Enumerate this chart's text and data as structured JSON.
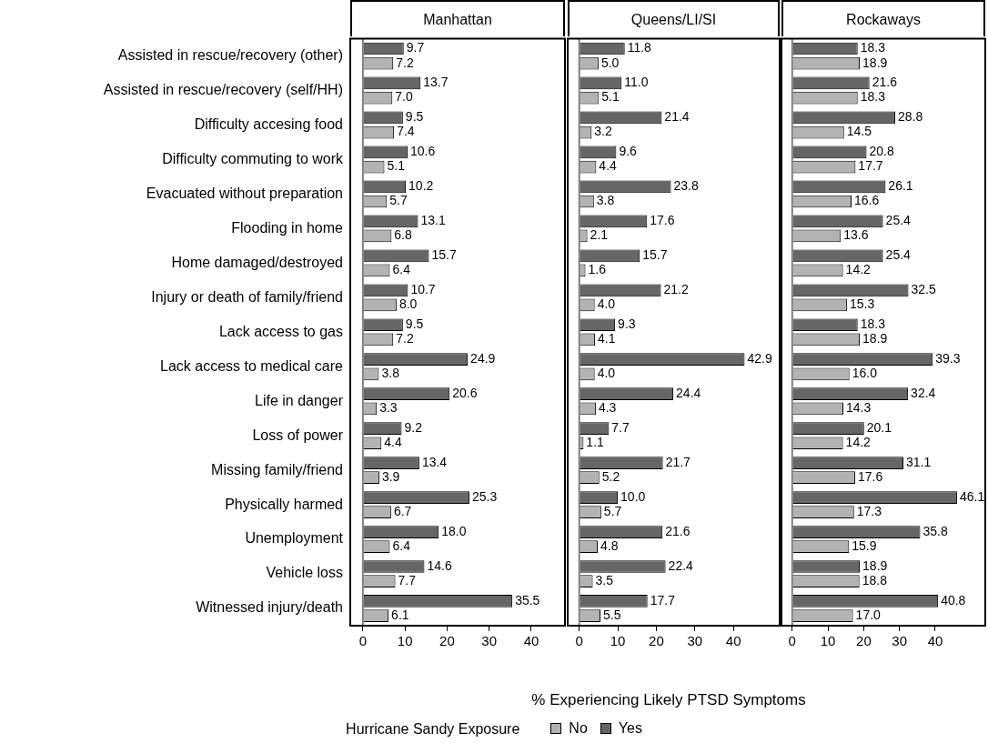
{
  "chart_data": [
    {
      "type": "bar",
      "orientation": "horizontal",
      "title": "Manhattan",
      "categories": [
        "Assisted in rescue/recovery (other)",
        "Assisted in rescue/recovery (self/HH)",
        "Difficulty accesing food",
        "Difficulty commuting to work",
        "Evacuated without preparation",
        "Flooding in home",
        "Home damaged/destroyed",
        "Injury or death of family/friend",
        "Lack access to gas",
        "Lack access to medical care",
        "Life in danger",
        "Loss of power",
        "Missing family/friend",
        "Physically harmed",
        "Unemployment",
        "Vehicle loss",
        "Witnessed injury/death"
      ],
      "series": [
        {
          "name": "Yes",
          "color": "#666666",
          "values": [
            9.7,
            13.7,
            9.5,
            10.6,
            10.2,
            13.1,
            15.7,
            10.7,
            9.5,
            24.9,
            20.6,
            9.2,
            13.4,
            25.3,
            18.0,
            14.6,
            35.5
          ],
          "value_labels": [
            "9.7",
            "13.7",
            "9.5",
            "10.6",
            "10.2",
            "13.1",
            "15.7",
            "10.7",
            "9.5",
            "24.9",
            "20.6",
            "9.2",
            "13.4",
            "25.3",
            "18.0",
            "14.6",
            "35.5"
          ]
        },
        {
          "name": "No",
          "color": "#b3b3b3",
          "values": [
            7.2,
            7.0,
            7.4,
            5.1,
            5.7,
            6.8,
            6.4,
            8.0,
            7.2,
            3.8,
            3.3,
            4.4,
            3.9,
            6.7,
            6.4,
            7.7,
            6.1
          ],
          "value_labels": [
            "7.2",
            "7.0",
            "7.4",
            "5.1",
            "5.7",
            "6.8",
            "6.4",
            "8.0",
            "7.2",
            "3.8",
            "3.3",
            "4.4",
            "3.9",
            "6.7",
            "6.4",
            "7.7",
            "6.1"
          ]
        }
      ],
      "xlim": [
        -3,
        48
      ],
      "xticks": [
        0,
        10,
        20,
        30,
        40
      ],
      "legend": "bottom",
      "legend_title": "Hurricane Sandy Exposure",
      "grid": false,
      "ref_lines": [
        {
          "axis": "x",
          "value": 0,
          "color": "#808080"
        }
      ]
    },
    {
      "type": "bar",
      "orientation": "horizontal",
      "title": "Queens/LI/SI",
      "categories": [
        null,
        null,
        null,
        null,
        null,
        null,
        null,
        null,
        null,
        null,
        null,
        null,
        null,
        null,
        null,
        null,
        null
      ],
      "series": [
        {
          "color": "#666666",
          "values": [
            11.8,
            11.0,
            21.4,
            9.6,
            23.8,
            17.6,
            15.7,
            21.2,
            9.3,
            42.9,
            24.4,
            7.7,
            21.7,
            10.0,
            21.6,
            22.4,
            17.7
          ],
          "value_labels": [
            "11.8",
            "11.0",
            "21.4",
            "9.6",
            "23.8",
            "17.6",
            "15.7",
            "21.2",
            "9.3",
            "42.9",
            "24.4",
            "7.7",
            "21.7",
            "10.0",
            "21.6",
            "22.4",
            "17.7"
          ]
        },
        {
          "color": "#b3b3b3",
          "values": [
            5.0,
            5.1,
            3.2,
            4.4,
            3.8,
            2.1,
            1.6,
            4.0,
            4.1,
            4.0,
            4.3,
            1.1,
            5.2,
            5.7,
            4.8,
            3.5,
            5.5
          ],
          "value_labels": [
            "5.0",
            "5.1",
            "3.2",
            "4.4",
            "3.8",
            "2.1",
            "1.6",
            "4.0",
            "4.1",
            "4.0",
            "4.3",
            "1.1",
            "5.2",
            "5.7",
            "4.8",
            "3.5",
            "5.5"
          ]
        }
      ],
      "xlim": [
        -3,
        52
      ],
      "xticks": [
        0,
        10,
        20,
        30,
        40
      ],
      "xlabel": "% Experiencing Likely PTSD Symptoms",
      "tick_labels": "x",
      "grid": false,
      "ref_lines": [
        {
          "axis": "x",
          "value": 0,
          "color": "#808080"
        }
      ]
    },
    {
      "type": "bar",
      "orientation": "horizontal",
      "title": "Rockaways",
      "categories": [
        null,
        null,
        null,
        null,
        null,
        null,
        null,
        null,
        null,
        null,
        null,
        null,
        null,
        null,
        null,
        null,
        null
      ],
      "series": [
        {
          "color": "#666666",
          "values": [
            18.3,
            21.6,
            28.8,
            20.8,
            26.1,
            25.4,
            25.4,
            32.5,
            18.3,
            39.3,
            32.4,
            20.1,
            31.1,
            46.1,
            35.8,
            18.9,
            40.8
          ],
          "value_labels": [
            "18.3",
            "21.6",
            "28.8",
            "20.8",
            "26.1",
            "25.4",
            "25.4",
            "32.5",
            "18.3",
            "39.3",
            "32.4",
            "20.1",
            "31.1",
            "46.1",
            "35.8",
            "18.9",
            "40.8"
          ]
        },
        {
          "color": "#b3b3b3",
          "values": [
            18.9,
            18.3,
            14.5,
            17.7,
            16.6,
            13.6,
            14.2,
            15.3,
            18.9,
            16.0,
            14.3,
            14.2,
            17.6,
            17.3,
            15.9,
            18.8,
            17.0
          ],
          "value_labels": [
            "18.9",
            "18.3",
            "14.5",
            "17.7",
            "16.6",
            "13.6",
            "14.2",
            "15.3",
            "18.9",
            "16.0",
            "14.3",
            "14.2",
            "17.6",
            "17.3",
            "15.9",
            "18.8",
            "17.0"
          ]
        }
      ],
      "xlim": [
        -3,
        54
      ],
      "xticks": [
        0,
        10,
        20,
        30,
        40
      ],
      "tick_labels": "x",
      "grid": false,
      "ref_lines": [
        {
          "axis": "x",
          "value": 0,
          "color": "#808080"
        }
      ]
    }
  ]
}
